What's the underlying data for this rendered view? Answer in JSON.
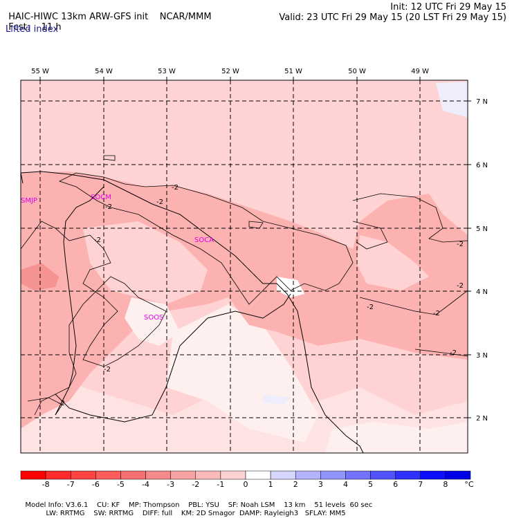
{
  "header": {
    "model_title": "HAIC-HIWC 13km ARW-GFS init",
    "center": "NCAR/MMM",
    "forecast_label": "Fcst:",
    "forecast_hours": "11 h",
    "init_label": "Init: 12 UTC Fri 29 May 15",
    "valid_label": "Valid: 23 UTC Fri 29 May 15 (20 LST Fri 29 May 15)",
    "field_name": "Lifted index"
  },
  "map": {
    "lon_labels": [
      "55 W",
      "54 W",
      "53 W",
      "52 W",
      "51 W",
      "50 W",
      "49 W"
    ],
    "lat_labels": [
      "7 N",
      "6 N",
      "5 N",
      "4 N",
      "3 N",
      "2 N"
    ],
    "contour_labels": [
      "-2",
      "-2",
      "-2",
      "-2",
      "-2",
      "-2",
      "-2",
      "-2",
      "-2",
      "-2",
      "-2"
    ],
    "stations": [
      "SMJP",
      "SOCM",
      "SOCA",
      "SOOS"
    ],
    "colors": {
      "li_minus1": "#ffd3d3",
      "li_minus2": "#fdb2b2",
      "li_minus3": "#f59292",
      "li_minus4": "#f07676",
      "li_plus0": "#fff0f0",
      "li_plus1": "#ededfb",
      "station_color": "#e600e6"
    }
  },
  "colorbar": {
    "ticks": [
      "-8",
      "-7",
      "-6",
      "-5",
      "-4",
      "-3",
      "-2",
      "-1",
      "0",
      "1",
      "2",
      "3",
      "4",
      "5",
      "6",
      "7",
      "8"
    ],
    "unit": "°C",
    "colors": [
      "#ff0000",
      "#ff2a2a",
      "#ff4343",
      "#ff5c5c",
      "#f87070",
      "#f58a8a",
      "#f8a3a3",
      "#fbbaba",
      "#ffd3d3",
      "#ffffff",
      "#d6d6ff",
      "#b3b3ff",
      "#9494ff",
      "#7373ff",
      "#5252ff",
      "#3030ff",
      "#0d0dff",
      "#0000e6"
    ]
  },
  "footer": {
    "line1": [
      "Model Info: V3.6.1",
      "CU: KF",
      "MP: Thompson",
      "PBL: YSU",
      "SF: Noah LSM",
      "13 km",
      "51 levels",
      "60 sec"
    ],
    "line2": [
      "LW: RRTMG",
      "SW: RRTMG",
      "DIFF: full",
      "KM: 2D Smagor",
      "DAMP: Rayleigh3",
      "SFLAY: MM5"
    ]
  }
}
